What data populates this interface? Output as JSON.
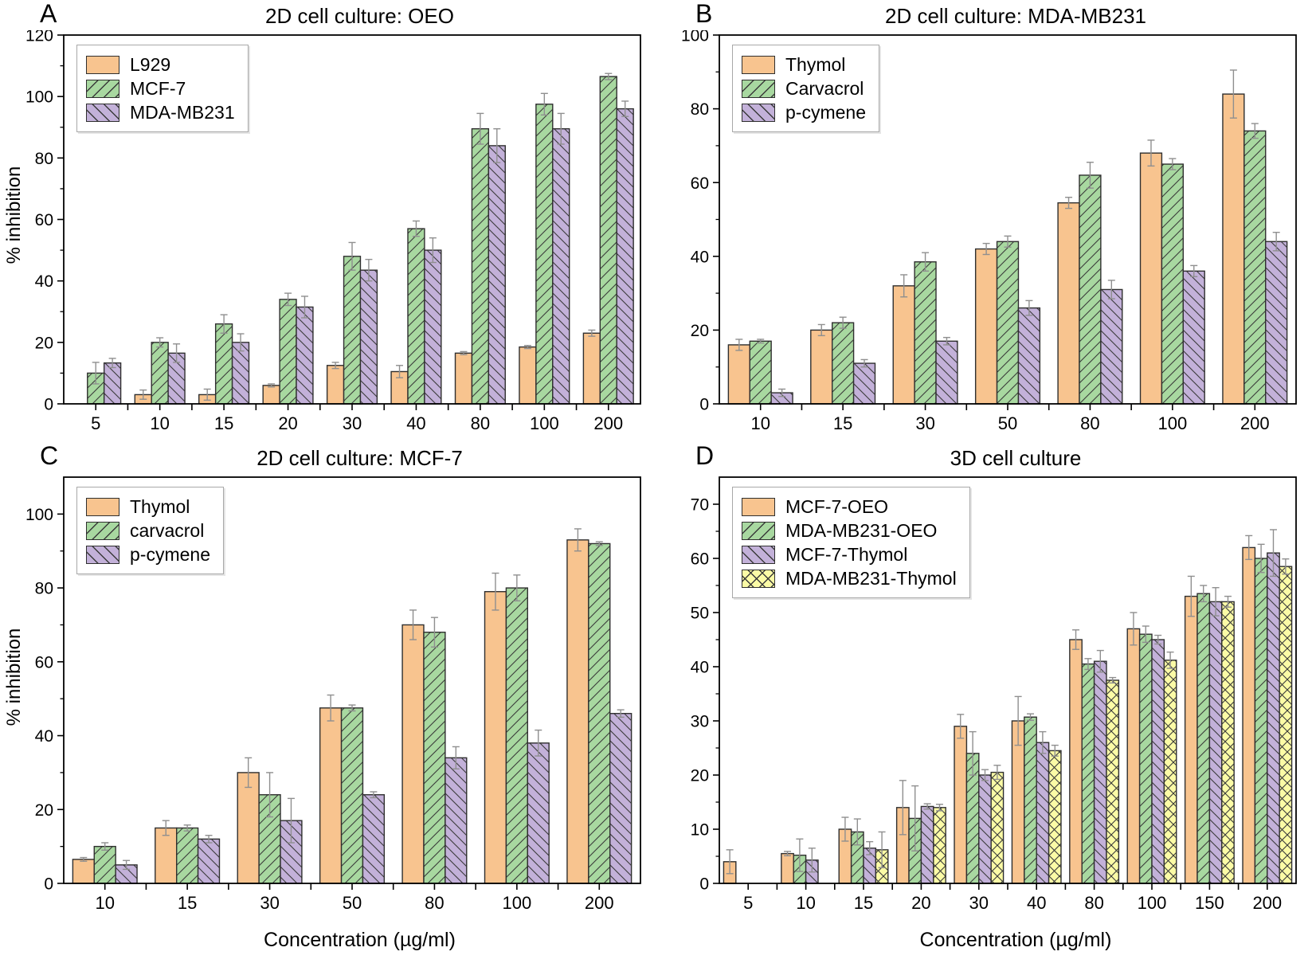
{
  "figure": {
    "xlabel": "Concentration (µg/ml)",
    "ylabel": "% inhibition",
    "style": {
      "orange": "#F8C48F",
      "green": "#A8D8A0",
      "purple": "#C3B1D9",
      "yellow": "#FBFBA6",
      "bar_edge": "#2F2F2F",
      "error_bar": "#8F8F8F",
      "axis": "#000000"
    }
  },
  "chart_data": [
    {
      "id": "A",
      "letter": "A",
      "type": "bar",
      "title": "2D cell culture: OEO",
      "ylabel": "% inhibition",
      "xlabel": null,
      "categories": [
        5,
        10,
        15,
        20,
        30,
        40,
        80,
        100,
        200
      ],
      "ylim": [
        0,
        120
      ],
      "ytick": 20,
      "yminor": 10,
      "grid": false,
      "legend_position": "top-left",
      "series": [
        {
          "name": "L929",
          "color": "#F8C48F",
          "hatch": "none",
          "values": [
            0,
            3,
            3,
            6,
            12.5,
            10.5,
            16.5,
            18.5,
            23
          ],
          "errors": [
            0,
            1.5,
            1.8,
            0.5,
            1,
            2,
            0.5,
            0.5,
            1
          ]
        },
        {
          "name": "MCF-7",
          "color": "#A8D8A0",
          "hatch": "fwd",
          "values": [
            10,
            20,
            26,
            34,
            48,
            57,
            89.5,
            97.5,
            106.5
          ],
          "errors": [
            3.5,
            1.5,
            3,
            2,
            4.5,
            2.5,
            5,
            3.5,
            1
          ]
        },
        {
          "name": "MDA-MB231",
          "color": "#C3B1D9",
          "hatch": "back",
          "values": [
            13.3,
            16.5,
            20,
            31.5,
            43.5,
            50,
            84,
            89.5,
            96
          ],
          "errors": [
            1.5,
            3,
            2.8,
            3.5,
            3.5,
            4,
            5.5,
            5,
            2.5
          ]
        }
      ]
    },
    {
      "id": "B",
      "letter": "B",
      "type": "bar",
      "title": "2D cell culture: MDA-MB231",
      "ylabel": null,
      "xlabel": null,
      "categories": [
        10,
        15,
        30,
        50,
        80,
        100,
        200
      ],
      "ylim": [
        0,
        100
      ],
      "ytick": 20,
      "yminor": 10,
      "grid": false,
      "legend_position": "top-left",
      "series": [
        {
          "name": "Thymol",
          "color": "#F8C48F",
          "hatch": "none",
          "values": [
            16,
            20,
            32,
            42,
            54.5,
            68,
            84
          ],
          "errors": [
            1.5,
            1.5,
            3,
            1.5,
            1.5,
            3.5,
            6.5
          ]
        },
        {
          "name": "Carvacrol",
          "color": "#A8D8A0",
          "hatch": "fwd",
          "values": [
            17,
            22,
            38.5,
            44,
            62,
            65,
            74
          ],
          "errors": [
            0.5,
            1.5,
            2.5,
            1.5,
            3.5,
            1.5,
            2
          ]
        },
        {
          "name": "p-cymene",
          "color": "#C3B1D9",
          "hatch": "back",
          "values": [
            3,
            11,
            17,
            26,
            31,
            36,
            44
          ],
          "errors": [
            1,
            1,
            1,
            2,
            2.5,
            1.5,
            2.5
          ]
        }
      ]
    },
    {
      "id": "C",
      "letter": "C",
      "type": "bar",
      "title": "2D cell culture: MCF-7",
      "ylabel": "% inhibition",
      "xlabel": "Concentration (µg/ml)",
      "categories": [
        10,
        15,
        30,
        50,
        80,
        100,
        200
      ],
      "ylim": [
        0,
        110
      ],
      "ytick": 20,
      "yminor": 10,
      "grid": false,
      "legend_position": "top-left",
      "series": [
        {
          "name": "Thymol",
          "color": "#F8C48F",
          "hatch": "none",
          "values": [
            6.5,
            15,
            30,
            47.5,
            70,
            79,
            93
          ],
          "errors": [
            0.5,
            2,
            4,
            3.5,
            4,
            5,
            3
          ]
        },
        {
          "name": "carvacrol",
          "color": "#A8D8A0",
          "hatch": "fwd",
          "values": [
            10,
            15,
            24,
            47.5,
            68,
            80,
            92
          ],
          "errors": [
            1,
            0.8,
            6,
            0.8,
            4,
            3.5,
            0.5
          ]
        },
        {
          "name": "p-cymene",
          "color": "#C3B1D9",
          "hatch": "back",
          "values": [
            5,
            12,
            17,
            24,
            34,
            38,
            46
          ],
          "errors": [
            1.2,
            1,
            6,
            0.8,
            3,
            3.5,
            1
          ]
        }
      ]
    },
    {
      "id": "D",
      "letter": "D",
      "type": "bar",
      "title": "3D cell culture",
      "ylabel": null,
      "xlabel": "Concentration (µg/ml)",
      "categories": [
        5,
        10,
        15,
        20,
        30,
        40,
        80,
        100,
        150,
        200
      ],
      "ylim": [
        0,
        75
      ],
      "ytick": 10,
      "yminor": 5,
      "grid": false,
      "legend_position": "top-left",
      "series": [
        {
          "name": "MCF-7-OEO",
          "color": "#F8C48F",
          "hatch": "none",
          "values": [
            4,
            5.5,
            10,
            14,
            29,
            30,
            45,
            47,
            53,
            62
          ],
          "errors": [
            2.2,
            0.4,
            2.2,
            5,
            2.2,
            4.5,
            1.8,
            3,
            3.7,
            2.2
          ]
        },
        {
          "name": "MDA-MB231-OEO",
          "color": "#A8D8A0",
          "hatch": "fwd",
          "values": [
            0,
            5.2,
            9.5,
            12,
            24,
            30.7,
            40.5,
            46,
            53.5,
            60
          ],
          "errors": [
            0,
            3,
            2.4,
            6,
            4,
            0.6,
            1,
            1.5,
            1.5,
            2.6
          ]
        },
        {
          "name": "MCF-7-Thymol",
          "color": "#C3B1D9",
          "hatch": "back",
          "values": [
            0,
            4.3,
            6.5,
            14.2,
            20,
            26,
            41,
            45,
            52,
            61
          ],
          "errors": [
            0,
            2.2,
            1.2,
            0.5,
            1,
            2,
            2,
            0.8,
            2.6,
            4.3
          ]
        },
        {
          "name": "MDA-MB231-Thymol",
          "color": "#FBFBA6",
          "hatch": "cross",
          "values": [
            0,
            0,
            6.2,
            14,
            20.5,
            24.5,
            37.5,
            41.2,
            52,
            58.5
          ],
          "errors": [
            0,
            0,
            3.3,
            0.6,
            1.3,
            1,
            0.5,
            1.5,
            1,
            1.4
          ]
        }
      ]
    }
  ]
}
